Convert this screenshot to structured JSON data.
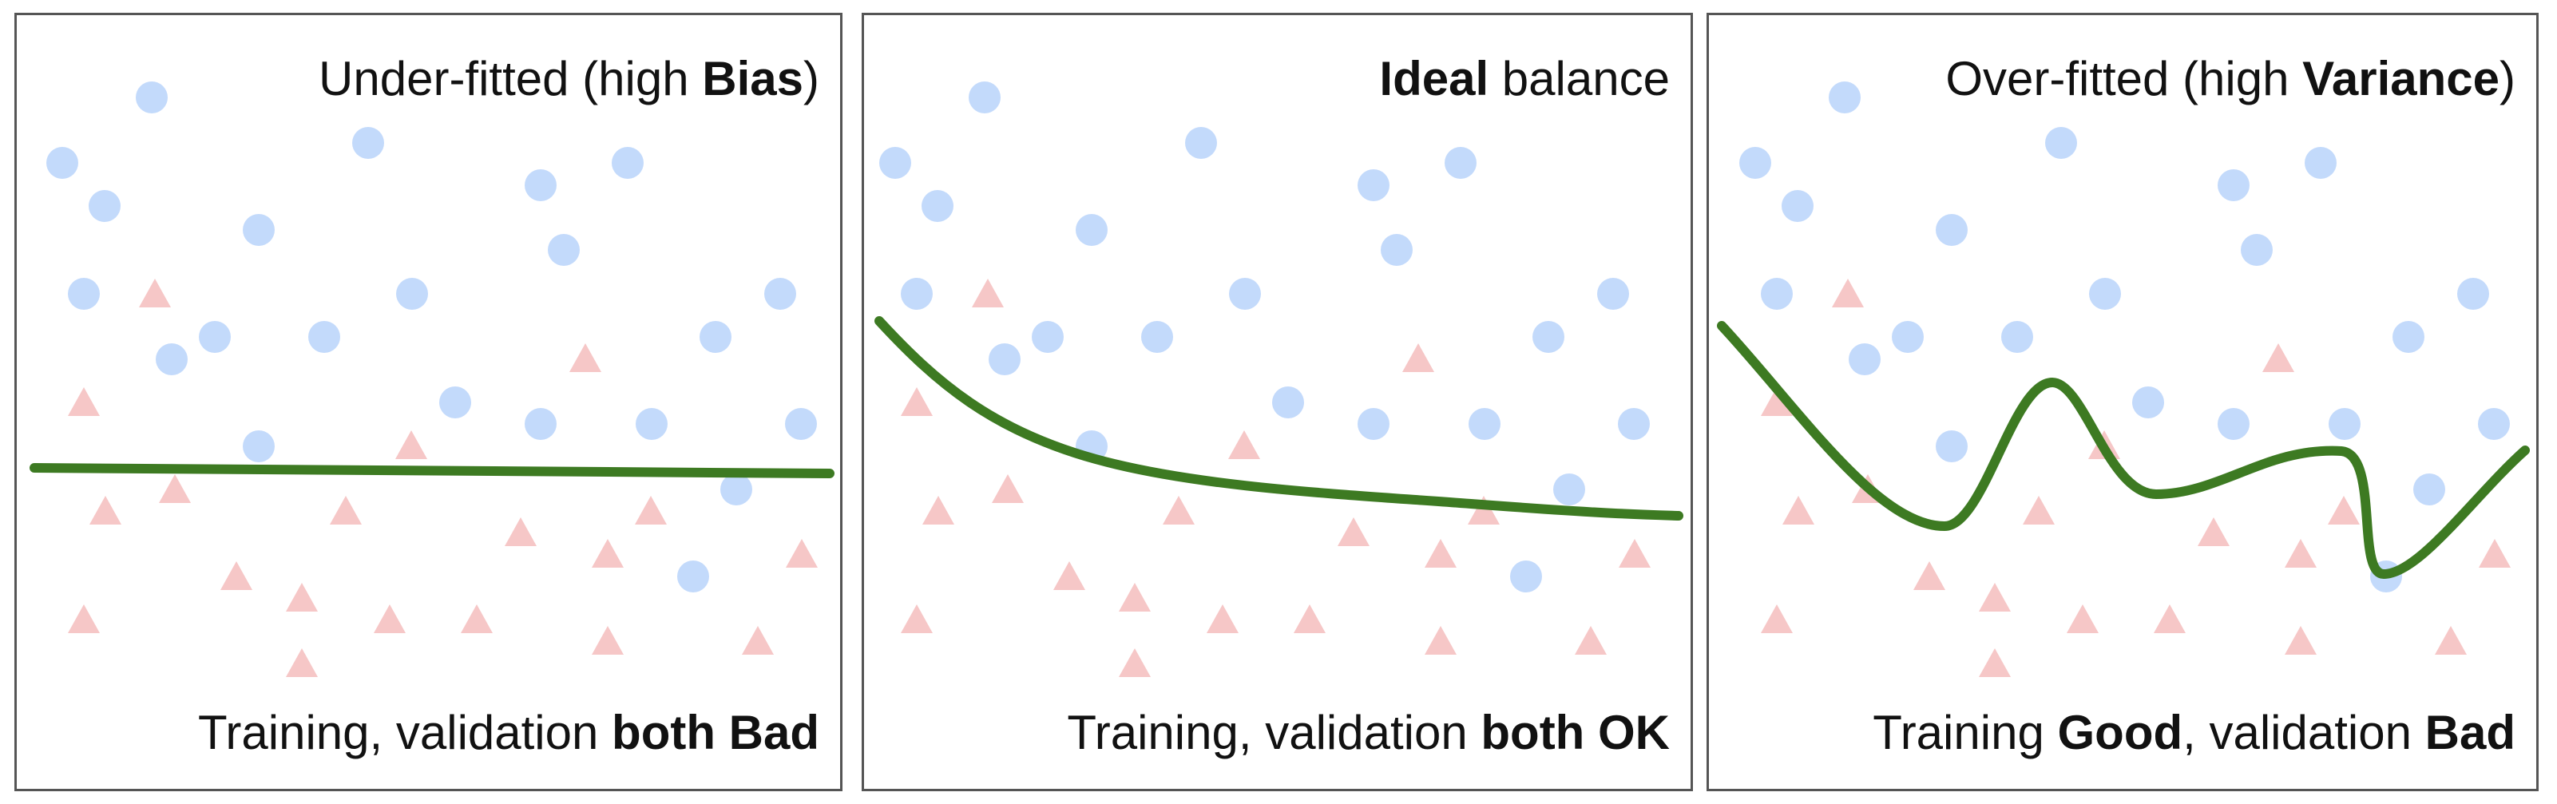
{
  "colors": {
    "circle": "#c3dafb",
    "triangle": "#f6c7c7",
    "curve": "#3d7a22",
    "border": "#555555"
  },
  "panels": [
    {
      "title": {
        "pre": "Under-fitted (high ",
        "bold": "Bias",
        "post": ")"
      },
      "caption": {
        "pre": "Training, validation ",
        "bold": "both Bad",
        "post": "",
        "bold2": ""
      }
    },
    {
      "title": {
        "pre": "",
        "bold": "Ideal",
        "post": " balance"
      },
      "caption": {
        "pre": "Training, validation ",
        "bold": "both OK",
        "post": "",
        "bold2": ""
      }
    },
    {
      "title": {
        "pre": "Over-fitted (high ",
        "bold": "Variance",
        "post": ")"
      },
      "caption": {
        "pre": "Training ",
        "bold": "Good",
        "post": ", validation ",
        "bold2": "Bad"
      }
    }
  ]
}
